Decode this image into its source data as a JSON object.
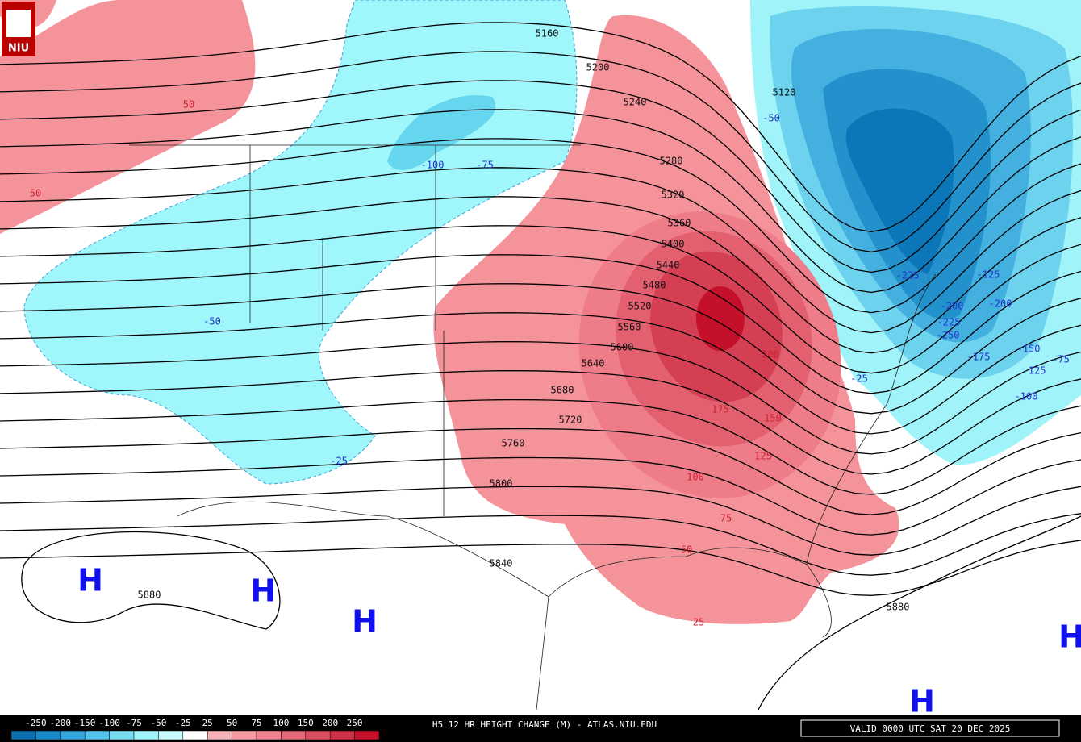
{
  "logo": "NIU",
  "height_labels": [
    "5160",
    "5200",
    "5240",
    "5280",
    "5320",
    "5360",
    "5400",
    "5440",
    "5480",
    "5520",
    "5560",
    "5600",
    "5640",
    "5680",
    "5720",
    "5760",
    "5800",
    "5840",
    "5880",
    "5880",
    "5120"
  ],
  "change_labels": [
    "50",
    "50",
    "-100",
    "-75",
    "-50",
    "-25",
    "-50",
    "-25",
    "-225",
    "-125",
    "-200",
    "-200",
    "-225",
    "-250",
    "-175",
    "-150",
    "-125",
    "-75",
    "-100",
    "200",
    "175",
    "150",
    "125",
    "100",
    "75",
    "50",
    "25"
  ],
  "highs": [
    "H",
    "H",
    "H",
    "H",
    "H"
  ],
  "legend": {
    "labels": [
      "-250",
      "-200",
      "-150",
      "-100",
      "-75",
      "-50",
      "-25",
      "25",
      "50",
      "75",
      "100",
      "150",
      "200",
      "250"
    ],
    "colors": [
      "#0b6fae",
      "#1a8bc6",
      "#35a6d9",
      "#55c3ea",
      "#7adcf3",
      "#9ff3f9",
      "#c8fbfd",
      "#ffffff",
      "#f7b0b6",
      "#f49aa2",
      "#ee8490",
      "#e56a79",
      "#db4e61",
      "#cf3146",
      "#c4102a"
    ]
  },
  "footer": {
    "title": "H5 12 HR HEIGHT CHANGE (M) - ATLAS.NIU.EDU",
    "valid": "VALID 0000 UTC SAT 20 DEC 2025"
  }
}
